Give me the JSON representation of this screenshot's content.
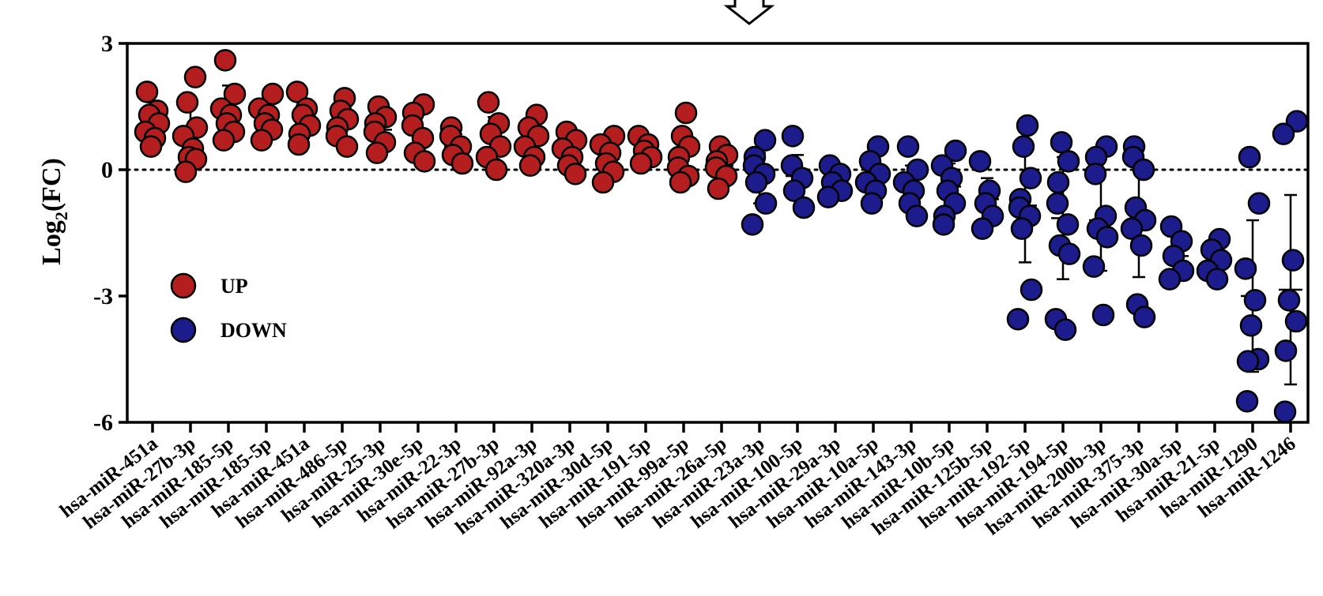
{
  "chart_data": {
    "type": "scatter",
    "title": "",
    "xlabel": "",
    "ylabel": "Log2(FC)",
    "ylabel_main": "Log",
    "ylabel_sub": "2",
    "ylabel_tail": "(FC)",
    "ylim": [
      -6,
      3
    ],
    "yticks": [
      3,
      0,
      -3,
      -6
    ],
    "ytick_labels": [
      "3",
      "0",
      "-3",
      "-6"
    ],
    "zero_reference_line": "dotted",
    "grid": false,
    "legend": {
      "placement": "left",
      "entries": [
        {
          "label": "UP",
          "color": "#b41e1e"
        },
        {
          "label": "DOWN",
          "color": "#1c1c8c"
        }
      ]
    },
    "colors": {
      "up": "#b41e1e",
      "down": "#1c1c8c"
    },
    "categories": [
      "hsa-miR-451a",
      "hsa-miR-27b-3p",
      "hsa-miR-185-5p",
      "hsa-miR-185-5p",
      "hsa-miR-451a",
      "hsa-miR-486-5p",
      "hsa-miR-25-3p",
      "hsa-miR-30e-5p",
      "hsa-miR-22-3p",
      "hsa-miR-27b-3p",
      "hsa-miR-92a-3p",
      "hsa-miR-320a-3p",
      "hsa-miR-30d-5p",
      "hsa-miR-191-5p",
      "hsa-miR-99a-5p",
      "hsa-miR-26a-5p",
      "hsa-miR-23a-3p",
      "hsa-miR-100-5p",
      "hsa-miR-29a-3p",
      "hsa-miR-10a-5p",
      "hsa-miR-143-3p",
      "hsa-miR-10b-5p",
      "hsa-miR-125b-5p",
      "hsa-miR-192-5p",
      "hsa-miR-194-5p",
      "hsa-miR-200b-3p",
      "hsa-miR-375-3p",
      "hsa-miR-30a-5p",
      "hsa-miR-21-5p",
      "hsa-miR-1290",
      "hsa-miR-1246"
    ],
    "group": [
      "up",
      "up",
      "up",
      "up",
      "up",
      "up",
      "up",
      "up",
      "up",
      "up",
      "up",
      "up",
      "up",
      "up",
      "up",
      "up",
      "down",
      "down",
      "down",
      "down",
      "down",
      "down",
      "down",
      "down",
      "down",
      "down",
      "down",
      "down",
      "down",
      "down",
      "down"
    ],
    "points": [
      [
        1.85,
        1.4,
        1.3,
        1.1,
        0.9,
        0.75,
        0.55
      ],
      [
        2.2,
        1.6,
        1.0,
        0.8,
        0.5,
        0.3,
        0.25,
        -0.05
      ],
      [
        2.6,
        1.8,
        1.45,
        1.3,
        1.1,
        0.9,
        0.7
      ],
      [
        1.8,
        1.45,
        1.3,
        1.1,
        0.95,
        0.7
      ],
      [
        1.85,
        1.45,
        1.3,
        1.05,
        0.85,
        0.6
      ],
      [
        1.7,
        1.4,
        1.2,
        1.0,
        0.8,
        0.55
      ],
      [
        1.5,
        1.25,
        1.1,
        0.9,
        0.65,
        0.4
      ],
      [
        1.55,
        1.35,
        1.05,
        0.75,
        0.4,
        0.2
      ],
      [
        1.0,
        0.8,
        0.55,
        0.35,
        0.15
      ],
      [
        1.6,
        1.1,
        0.85,
        0.55,
        0.3,
        0.0
      ],
      [
        1.3,
        1.0,
        0.8,
        0.55,
        0.3,
        0.1
      ],
      [
        0.9,
        0.7,
        0.5,
        0.3,
        0.1,
        -0.1
      ],
      [
        0.8,
        0.6,
        0.4,
        0.15,
        -0.05,
        -0.3
      ],
      [
        0.8,
        0.6,
        0.45,
        0.3,
        0.15
      ],
      [
        1.35,
        0.8,
        0.55,
        0.3,
        0.05,
        -0.15,
        -0.3
      ],
      [
        0.55,
        0.35,
        0.2,
        0.05,
        -0.15,
        -0.45
      ],
      [
        0.7,
        0.3,
        0.1,
        -0.1,
        -0.3,
        -0.8,
        -1.3
      ],
      [
        0.8,
        0.1,
        -0.2,
        -0.5,
        -0.9
      ],
      [
        0.1,
        -0.1,
        -0.3,
        -0.5,
        -0.65
      ],
      [
        0.55,
        0.2,
        -0.1,
        -0.3,
        -0.5,
        -0.8
      ],
      [
        0.55,
        0.0,
        -0.3,
        -0.5,
        -0.8,
        -1.1
      ],
      [
        0.45,
        0.1,
        -0.2,
        -0.5,
        -0.8,
        -1.1,
        -1.3
      ],
      [
        0.2,
        -0.5,
        -0.8,
        -1.1,
        -1.4
      ],
      [
        1.05,
        0.55,
        -0.2,
        -0.7,
        -0.9,
        -1.1,
        -1.4,
        -2.85,
        -3.55
      ],
      [
        0.65,
        0.2,
        -0.3,
        -0.8,
        -1.3,
        -1.8,
        -2.0,
        -3.55,
        -3.8
      ],
      [
        0.55,
        0.3,
        -0.1,
        -1.1,
        -1.4,
        -1.6,
        -2.3,
        -3.45
      ],
      [
        0.55,
        0.3,
        0.0,
        -0.9,
        -1.2,
        -1.4,
        -1.8,
        -3.2,
        -3.5
      ],
      [
        -1.35,
        -1.7,
        -2.05,
        -2.4,
        -2.6
      ],
      [
        -1.65,
        -1.9,
        -2.15,
        -2.4,
        -2.6
      ],
      [
        0.3,
        -0.8,
        -2.35,
        -3.1,
        -3.7,
        -4.5,
        -4.55,
        -5.5
      ],
      [
        1.15,
        0.85,
        -2.15,
        -3.1,
        -3.6,
        -4.3,
        -5.75
      ]
    ],
    "mean": [
      1.2,
      0.8,
      1.4,
      1.2,
      1.2,
      1.1,
      0.95,
      0.9,
      0.55,
      0.75,
      0.65,
      0.4,
      0.25,
      0.45,
      0.35,
      0.1,
      -0.2,
      -0.15,
      -0.3,
      -0.2,
      -0.4,
      -0.4,
      -0.7,
      -0.85,
      -1.15,
      -1.2,
      -1.2,
      -2.05,
      -2.2,
      -3.0,
      -2.85
    ],
    "sd": [
      0.4,
      0.7,
      0.6,
      0.4,
      0.4,
      0.4,
      0.35,
      0.45,
      0.3,
      0.5,
      0.4,
      0.35,
      0.35,
      0.25,
      0.5,
      0.3,
      0.6,
      0.5,
      0.25,
      0.4,
      0.5,
      0.55,
      0.5,
      1.35,
      1.45,
      1.2,
      1.35,
      0.45,
      0.3,
      1.8,
      2.25
    ]
  }
}
